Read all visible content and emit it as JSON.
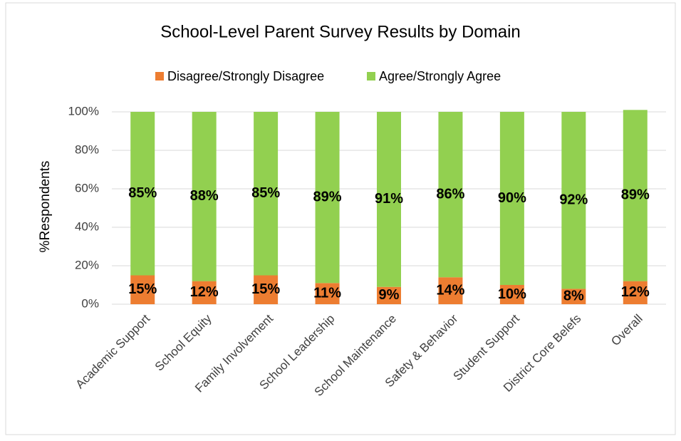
{
  "chart_data": {
    "type": "stacked_bar",
    "title": "School-Level Parent Survey Results by Domain",
    "y_axis_label": "%Respondents",
    "categories": [
      "Academic Support",
      "School Equity",
      "Family Involvement",
      "School Leadership",
      "School Maintenance",
      "Safety & Behavior",
      "Student Support",
      "District Core Belefs",
      "Overall"
    ],
    "series": [
      {
        "name": "Disagree/Strongly Disagree",
        "color": "#ed7d31",
        "values": [
          15,
          12,
          15,
          11,
          9,
          14,
          10,
          8,
          12
        ],
        "value_labels": [
          "15%",
          "12%",
          "15%",
          "11%",
          "9%",
          "14%",
          "10%",
          "8%",
          "12%"
        ]
      },
      {
        "name": "Agree/Strongly Agree",
        "color": "#92d050",
        "values": [
          85,
          88,
          85,
          89,
          91,
          86,
          90,
          92,
          89
        ],
        "value_labels": [
          "85%",
          "88%",
          "85%",
          "89%",
          "91%",
          "86%",
          "90%",
          "92%",
          "89%"
        ]
      }
    ],
    "ylim": [
      0,
      100
    ],
    "yticks": [
      {
        "value": 0,
        "label": "0%"
      },
      {
        "value": 20,
        "label": "20%"
      },
      {
        "value": 40,
        "label": "40%"
      },
      {
        "value": 60,
        "label": "60%"
      },
      {
        "value": 80,
        "label": "80%"
      },
      {
        "value": 100,
        "label": "100%"
      }
    ],
    "grid": true,
    "legend": "top"
  }
}
